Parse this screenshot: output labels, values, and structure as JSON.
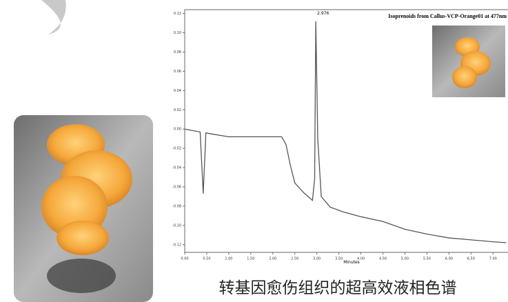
{
  "chart_data": {
    "type": "line",
    "title": "Isoprenoids from Callus-VCP-Orange01 at 477nm",
    "xlabel": "Minutes",
    "annotations": [
      "2.976"
    ],
    "color": "#555555",
    "x": [
      0,
      0.35,
      0.42,
      0.48,
      0.6,
      1.0,
      1.5,
      2.0,
      2.2,
      2.3,
      2.4,
      2.5,
      2.7,
      2.9,
      2.95,
      2.976,
      3.02,
      3.1,
      3.3,
      3.6,
      4.0,
      4.5,
      5.0,
      5.5,
      6.0,
      6.5,
      7.0,
      7.3
    ],
    "values": [
      0.0,
      -0.003,
      -0.067,
      -0.004,
      -0.005,
      -0.008,
      -0.008,
      -0.008,
      -0.008,
      -0.016,
      -0.038,
      -0.056,
      -0.066,
      -0.074,
      -0.052,
      0.112,
      -0.01,
      -0.07,
      -0.081,
      -0.086,
      -0.091,
      -0.096,
      -0.104,
      -0.109,
      -0.113,
      -0.115,
      -0.117,
      -0.118
    ],
    "xlim": [
      0,
      7.34
    ],
    "ylim": [
      -0.128,
      0.124
    ],
    "xticks": [
      {
        "value": 0,
        "label": "0.00"
      },
      {
        "value": 0.5,
        "label": "0.50"
      },
      {
        "value": 1,
        "label": "1.00"
      },
      {
        "value": 1.5,
        "label": "1.50"
      },
      {
        "value": 2,
        "label": "2.00"
      },
      {
        "value": 2.5,
        "label": "2.50"
      },
      {
        "value": 3,
        "label": "3.00"
      },
      {
        "value": 3.5,
        "label": "3.50"
      },
      {
        "value": 4,
        "label": "4.00"
      },
      {
        "value": 4.5,
        "label": "4.50"
      },
      {
        "value": 5,
        "label": "5.00"
      },
      {
        "value": 5.5,
        "label": "5.50"
      },
      {
        "value": 6,
        "label": "6.00"
      },
      {
        "value": 6.5,
        "label": "6.50"
      },
      {
        "value": 7,
        "label": "7.00"
      }
    ],
    "yticks": [
      0.12,
      {
        "value": 0.1,
        "label": "0.10"
      },
      0.08,
      0.06,
      0.04,
      0.02,
      {
        "value": 0,
        "label": "0.00"
      },
      -0.02,
      -0.04,
      -0.06,
      -0.08,
      {
        "value": -0.1,
        "label": "-0.10"
      },
      -0.12
    ]
  },
  "caption": "转基因愈伤组织的超高效液相色谱"
}
